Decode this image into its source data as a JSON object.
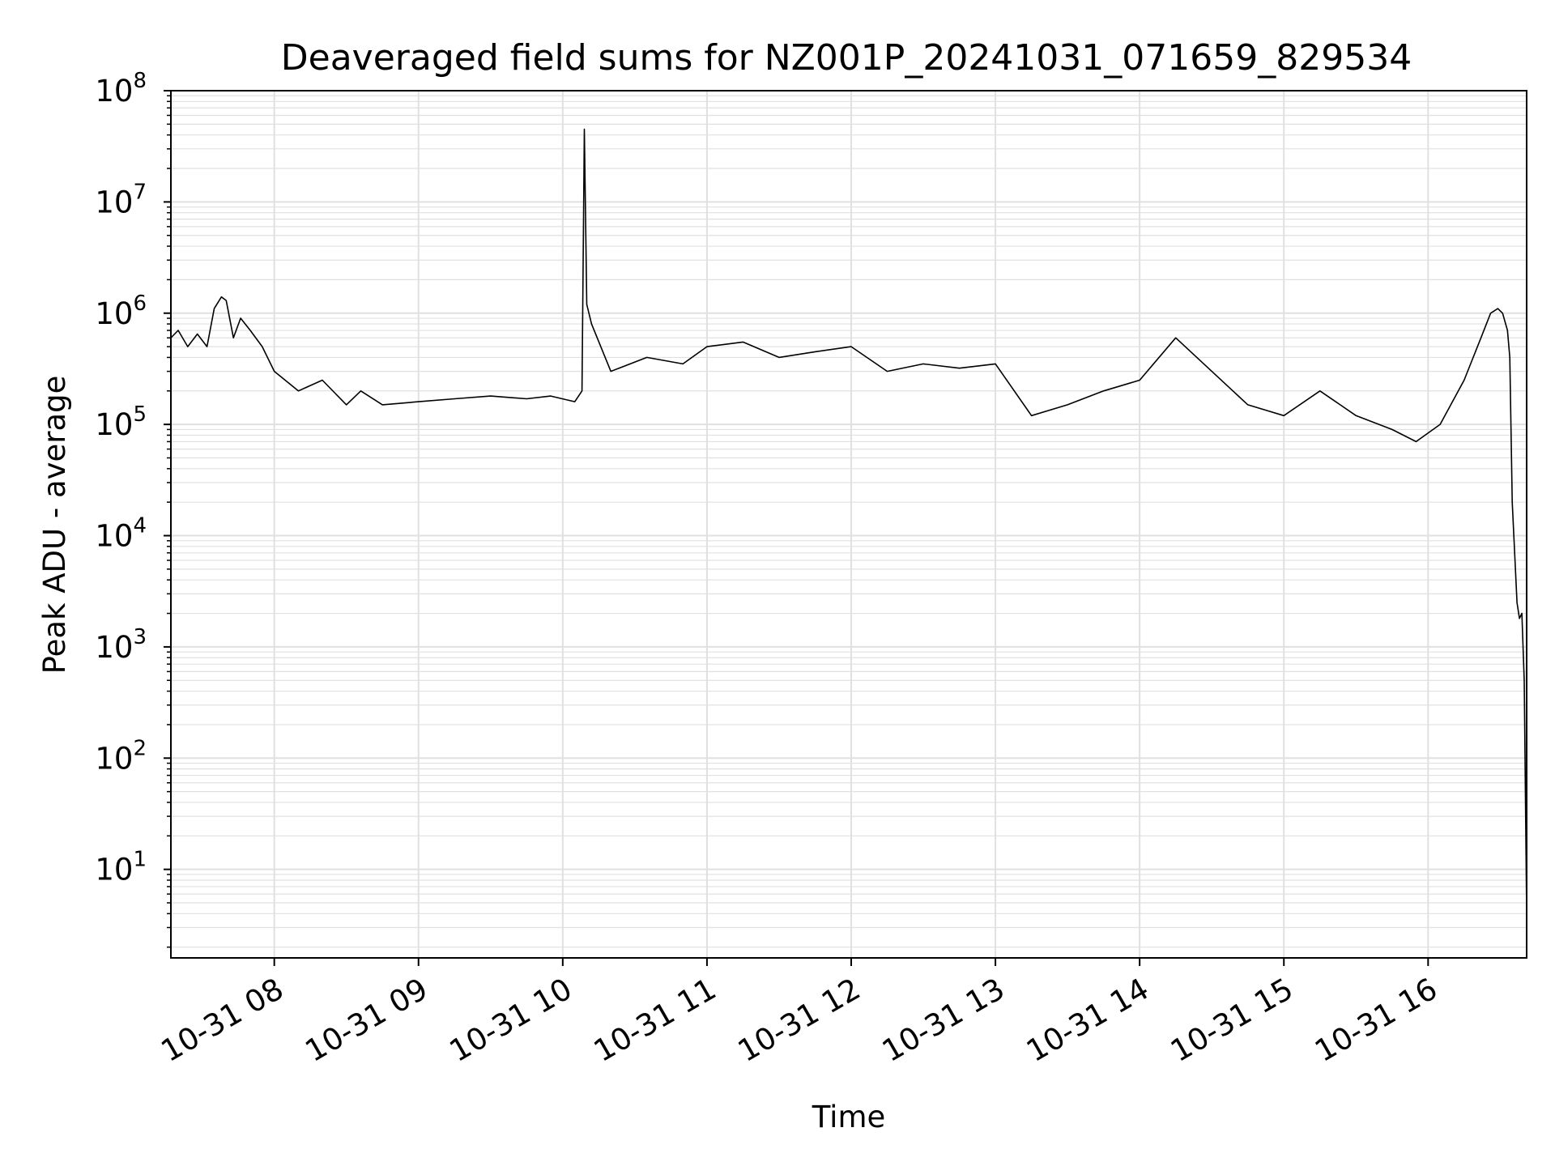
{
  "chart_data": {
    "type": "line",
    "title": "Deaveraged field sums for NZ001P_20241031_071659_829534",
    "xlabel": "Time",
    "ylabel": "Peak ADU - average",
    "y_scale": "log",
    "ylim": [
      1.6,
      100000000
    ],
    "y_ticks": [
      {
        "value": 10,
        "base": "10",
        "exp": "1"
      },
      {
        "value": 100,
        "base": "10",
        "exp": "2"
      },
      {
        "value": 1000,
        "base": "10",
        "exp": "3"
      },
      {
        "value": 10000,
        "base": "10",
        "exp": "4"
      },
      {
        "value": 100000,
        "base": "10",
        "exp": "5"
      },
      {
        "value": 1000000,
        "base": "10",
        "exp": "6"
      },
      {
        "value": 10000000,
        "base": "10",
        "exp": "7"
      },
      {
        "value": 100000000,
        "base": "10",
        "exp": "8"
      }
    ],
    "xlim": [
      "2024-10-31 07:16:59",
      "2024-10-31 16:41:00"
    ],
    "x_ticks": [
      {
        "value": "2024-10-31 08:00",
        "label": "10-31 08"
      },
      {
        "value": "2024-10-31 09:00",
        "label": "10-31 09"
      },
      {
        "value": "2024-10-31 10:00",
        "label": "10-31 10"
      },
      {
        "value": "2024-10-31 11:00",
        "label": "10-31 11"
      },
      {
        "value": "2024-10-31 12:00",
        "label": "10-31 12"
      },
      {
        "value": "2024-10-31 13:00",
        "label": "10-31 13"
      },
      {
        "value": "2024-10-31 14:00",
        "label": "10-31 14"
      },
      {
        "value": "2024-10-31 15:00",
        "label": "10-31 15"
      },
      {
        "value": "2024-10-31 16:00",
        "label": "10-31 16"
      }
    ],
    "grid": true,
    "line_color": "#000000",
    "grid_color": "#e0e0e0",
    "series": [
      {
        "x": [
          "2024-10-31 07:17",
          "2024-10-31 07:20",
          "2024-10-31 07:24",
          "2024-10-31 07:28",
          "2024-10-31 07:32",
          "2024-10-31 07:35",
          "2024-10-31 07:38",
          "2024-10-31 07:40",
          "2024-10-31 07:43",
          "2024-10-31 07:46",
          "2024-10-31 07:50",
          "2024-10-31 07:55",
          "2024-10-31 08:00",
          "2024-10-31 08:10",
          "2024-10-31 08:20",
          "2024-10-31 08:30",
          "2024-10-31 08:36",
          "2024-10-31 08:45",
          "2024-10-31 09:00",
          "2024-10-31 09:15",
          "2024-10-31 09:30",
          "2024-10-31 09:45",
          "2024-10-31 09:55",
          "2024-10-31 10:05",
          "2024-10-31 10:08",
          "2024-10-31 10:09",
          "2024-10-31 10:10",
          "2024-10-31 10:12",
          "2024-10-31 10:20",
          "2024-10-31 10:35",
          "2024-10-31 10:50",
          "2024-10-31 11:00",
          "2024-10-31 11:15",
          "2024-10-31 11:30",
          "2024-10-31 11:45",
          "2024-10-31 12:00",
          "2024-10-31 12:15",
          "2024-10-31 12:30",
          "2024-10-31 12:45",
          "2024-10-31 13:00",
          "2024-10-31 13:15",
          "2024-10-31 13:30",
          "2024-10-31 13:45",
          "2024-10-31 14:00",
          "2024-10-31 14:15",
          "2024-10-31 14:30",
          "2024-10-31 14:45",
          "2024-10-31 15:00",
          "2024-10-31 15:15",
          "2024-10-31 15:30",
          "2024-10-31 15:45",
          "2024-10-31 15:55",
          "2024-10-31 16:05",
          "2024-10-31 16:15",
          "2024-10-31 16:22",
          "2024-10-31 16:26",
          "2024-10-31 16:29",
          "2024-10-31 16:31",
          "2024-10-31 16:33",
          "2024-10-31 16:34",
          "2024-10-31 16:35",
          "2024-10-31 16:37",
          "2024-10-31 16:38",
          "2024-10-31 16:39",
          "2024-10-31 16:40",
          "2024-10-31 16:41"
        ],
        "y": [
          600000,
          700000,
          500000,
          650000,
          500000,
          1100000,
          1400000,
          1300000,
          600000,
          900000,
          700000,
          500000,
          300000,
          200000,
          250000,
          150000,
          200000,
          150000,
          160000,
          170000,
          180000,
          170000,
          180000,
          160000,
          200000,
          45000000,
          1200000,
          800000,
          300000,
          400000,
          350000,
          500000,
          550000,
          400000,
          450000,
          500000,
          300000,
          350000,
          320000,
          350000,
          120000,
          150000,
          200000,
          250000,
          600000,
          300000,
          150000,
          120000,
          200000,
          120000,
          90000,
          70000,
          100000,
          250000,
          600000,
          1000000,
          1100000,
          1000000,
          700000,
          400000,
          20000,
          2500,
          1800,
          2000,
          500,
          4
        ]
      }
    ]
  }
}
